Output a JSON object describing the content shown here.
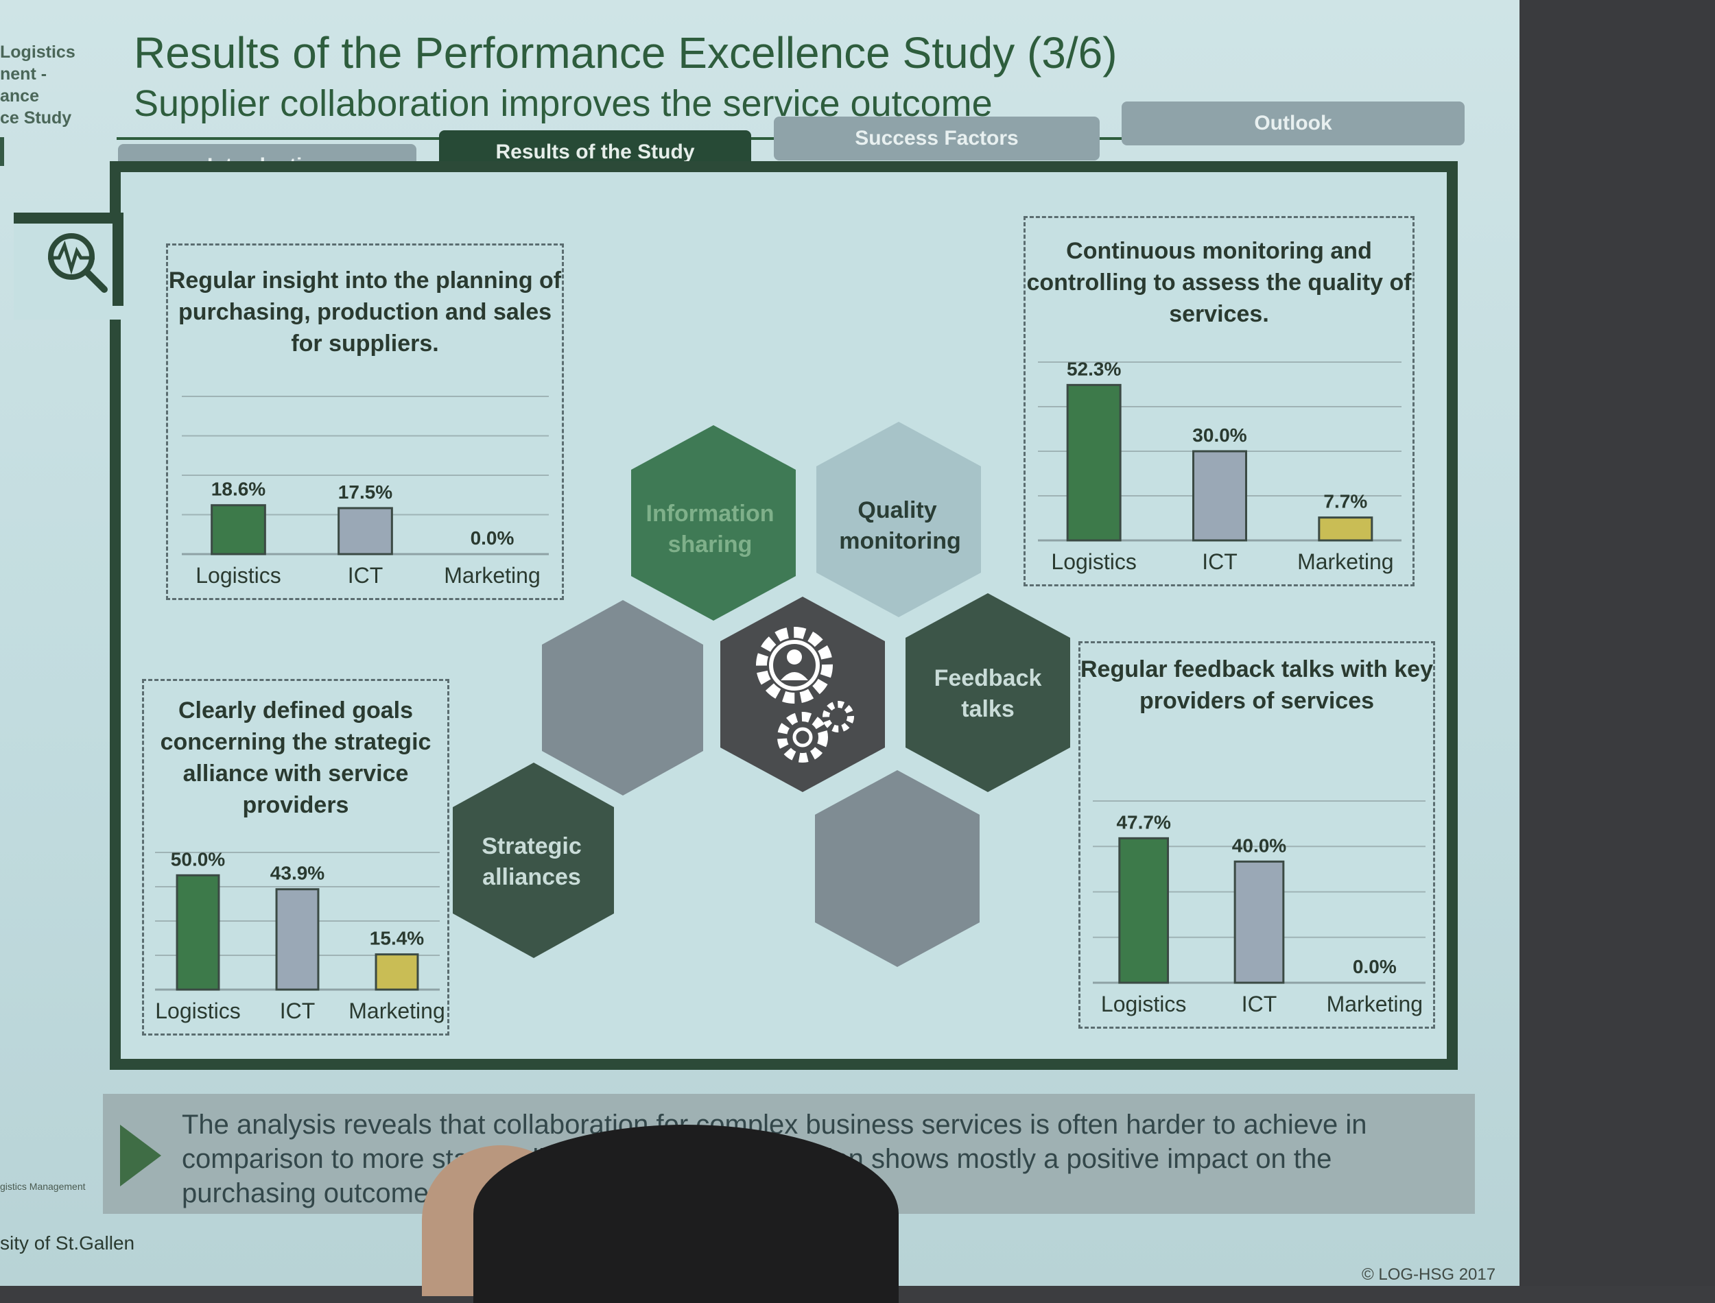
{
  "sidebar": {
    "lines": [
      "Logistics",
      "nent -",
      "ance",
      "ce Study"
    ]
  },
  "header": {
    "title": "Results of the Performance Excellence Study (3/6)",
    "subtitle": "Supplier collaboration improves the service outcome"
  },
  "tabs": [
    {
      "label": "Introduction",
      "active": false
    },
    {
      "label": "Results of the Study",
      "active": true
    },
    {
      "label": "Success Factors",
      "active": false
    },
    {
      "label": "Outlook",
      "active": false
    }
  ],
  "panels": {
    "top_left": {
      "title": "Regular insight into the planning of purchasing, production and sales for suppliers.",
      "chart_labels": {
        "logistics": "18.6%",
        "ict": "17.5%",
        "marketing": "0.0%"
      }
    },
    "top_right": {
      "title": "Continuous monitoring and controlling to assess the quality of services.",
      "chart_labels": {
        "logistics": "52.3%",
        "ict": "30.0%",
        "marketing": "7.7%"
      }
    },
    "bottom_left": {
      "title": "Clearly defined goals concerning the strategic alliance with service providers",
      "chart_labels": {
        "logistics": "50.0%",
        "ict": "43.9%",
        "marketing": "15.4%"
      }
    },
    "bottom_right": {
      "title": "Regular feedback talks with key providers of services",
      "chart_labels": {
        "logistics": "47.7%",
        "ict": "40.0%",
        "marketing": "0.0%"
      }
    }
  },
  "categories": [
    "Logistics",
    "ICT",
    "Marketing"
  ],
  "hexes": {
    "information_sharing": [
      "Information",
      "sharing"
    ],
    "quality_monitoring": [
      "Quality",
      "monitoring"
    ],
    "feedback_talks": [
      "Feedback",
      "talks"
    ],
    "strategic_alliances": [
      "Strategic",
      "alliances"
    ]
  },
  "colors": {
    "logistics": "#3d7a4a",
    "ict": "#9aa8b6",
    "marketing": "#c9bd55",
    "frame": "#2c4a38",
    "hex_green": "#3f7a55",
    "hex_light": "#a7c3c8",
    "hex_dark": "#3c5548",
    "hex_center": "#4a4c4e",
    "hex_grey": "#7f8c93"
  },
  "footer": {
    "text": "The analysis reveals that collaboration for complex business services is often harder to achieve in comparison to more standardized ones, as collaboration shows mostly a positive impact on the purchasing outcome of a collaborative effort."
  },
  "bottom": {
    "university": "sity of St.Gallen",
    "tiny_label": "gistics Management",
    "copyright": "© LOG-HSG 2017"
  },
  "chart_data": [
    {
      "type": "bar",
      "title": "Regular insight into the planning of purchasing, production and sales for suppliers.",
      "categories": [
        "Logistics",
        "ICT",
        "Marketing"
      ],
      "values": [
        18.6,
        17.5,
        0.0
      ],
      "ylim": [
        0,
        60
      ]
    },
    {
      "type": "bar",
      "title": "Continuous monitoring and controlling to assess the quality of services.",
      "categories": [
        "Logistics",
        "ICT",
        "Marketing"
      ],
      "values": [
        52.3,
        30.0,
        7.7
      ],
      "ylim": [
        0,
        60
      ]
    },
    {
      "type": "bar",
      "title": "Clearly defined goals concerning the strategic alliance with service providers",
      "categories": [
        "Logistics",
        "ICT",
        "Marketing"
      ],
      "values": [
        50.0,
        43.9,
        15.4
      ],
      "ylim": [
        0,
        60
      ]
    },
    {
      "type": "bar",
      "title": "Regular feedback talks with key providers of services",
      "categories": [
        "Logistics",
        "ICT",
        "Marketing"
      ],
      "values": [
        47.7,
        40.0,
        0.0
      ],
      "ylim": [
        0,
        60
      ]
    }
  ]
}
